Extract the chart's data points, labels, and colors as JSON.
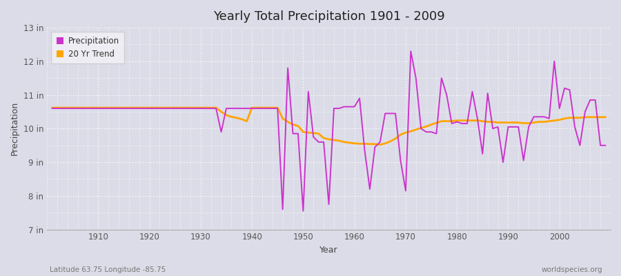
{
  "title": "Yearly Total Precipitation 1901 - 2009",
  "xlabel": "Year",
  "ylabel": "Precipitation",
  "subtitle_left": "Latitude 63.75 Longitude -85.75",
  "subtitle_right": "worldspecies.org",
  "bg_color": "#dcdce8",
  "plot_bg_color": "#dcdce8",
  "grid_color": "#ffffff",
  "line_color_precip": "#cc33cc",
  "line_color_trend": "#ffa500",
  "ylim": [
    7,
    13
  ],
  "ytick_labels": [
    "7 in",
    "8 in",
    "9 in",
    "10 in",
    "11 in",
    "12 in",
    "13 in"
  ],
  "ytick_values": [
    7,
    8,
    9,
    10,
    11,
    12,
    13
  ],
  "years": [
    1901,
    1902,
    1903,
    1904,
    1905,
    1906,
    1907,
    1908,
    1909,
    1910,
    1911,
    1912,
    1913,
    1914,
    1915,
    1916,
    1917,
    1918,
    1919,
    1920,
    1921,
    1922,
    1923,
    1924,
    1925,
    1926,
    1927,
    1928,
    1929,
    1930,
    1931,
    1932,
    1933,
    1934,
    1935,
    1936,
    1937,
    1938,
    1939,
    1940,
    1941,
    1942,
    1943,
    1944,
    1945,
    1946,
    1947,
    1948,
    1949,
    1950,
    1951,
    1952,
    1953,
    1954,
    1955,
    1956,
    1957,
    1958,
    1959,
    1960,
    1961,
    1962,
    1963,
    1964,
    1965,
    1966,
    1967,
    1968,
    1969,
    1970,
    1971,
    1972,
    1973,
    1974,
    1975,
    1976,
    1977,
    1978,
    1979,
    1980,
    1981,
    1982,
    1983,
    1984,
    1985,
    1986,
    1987,
    1988,
    1989,
    1990,
    1991,
    1992,
    1993,
    1994,
    1995,
    1996,
    1997,
    1998,
    1999,
    2000,
    2001,
    2002,
    2003,
    2004,
    2005,
    2006,
    2007,
    2008,
    2009
  ],
  "precip": [
    10.6,
    10.6,
    10.6,
    10.6,
    10.6,
    10.6,
    10.6,
    10.6,
    10.6,
    10.6,
    10.6,
    10.6,
    10.6,
    10.6,
    10.6,
    10.6,
    10.6,
    10.6,
    10.6,
    10.6,
    10.6,
    10.6,
    10.6,
    10.6,
    10.6,
    10.6,
    10.6,
    10.6,
    10.6,
    10.6,
    10.6,
    10.6,
    10.6,
    9.9,
    10.6,
    10.6,
    10.6,
    10.6,
    10.6,
    10.6,
    10.6,
    10.6,
    10.6,
    10.6,
    10.6,
    7.6,
    11.8,
    9.85,
    9.85,
    7.55,
    11.1,
    9.75,
    9.6,
    9.6,
    7.75,
    10.6,
    10.6,
    10.65,
    10.65,
    10.65,
    10.9,
    9.35,
    8.2,
    9.45,
    9.6,
    10.45,
    10.45,
    10.45,
    9.05,
    8.15,
    12.3,
    11.5,
    10.0,
    9.9,
    9.9,
    9.85,
    11.5,
    11.0,
    10.15,
    10.2,
    10.15,
    10.15,
    11.1,
    10.3,
    9.25,
    11.05,
    10.0,
    10.05,
    9.0,
    10.05,
    10.05,
    10.05,
    9.05,
    10.05,
    10.35,
    10.35,
    10.35,
    10.3,
    12.0,
    10.6,
    11.2,
    11.15,
    10.05,
    9.5,
    10.5,
    10.85,
    10.85,
    9.5,
    9.5
  ],
  "trend": [
    10.62,
    10.62,
    10.62,
    10.62,
    10.62,
    10.62,
    10.62,
    10.62,
    10.62,
    10.62,
    10.62,
    10.62,
    10.62,
    10.62,
    10.62,
    10.62,
    10.62,
    10.62,
    10.62,
    10.62,
    10.62,
    10.62,
    10.62,
    10.62,
    10.62,
    10.62,
    10.62,
    10.62,
    10.62,
    10.62,
    10.62,
    10.62,
    10.62,
    10.5,
    10.4,
    10.35,
    10.32,
    10.28,
    10.22,
    10.62,
    10.62,
    10.62,
    10.62,
    10.62,
    10.62,
    10.3,
    10.2,
    10.12,
    10.08,
    9.9,
    9.88,
    9.87,
    9.85,
    9.72,
    9.68,
    9.66,
    9.64,
    9.6,
    9.58,
    9.56,
    9.55,
    9.55,
    9.54,
    9.54,
    9.52,
    9.56,
    9.62,
    9.7,
    9.82,
    9.88,
    9.92,
    9.97,
    10.02,
    10.06,
    10.12,
    10.17,
    10.22,
    10.22,
    10.22,
    10.24,
    10.24,
    10.24,
    10.24,
    10.24,
    10.22,
    10.2,
    10.2,
    10.18,
    10.18,
    10.18,
    10.18,
    10.18,
    10.16,
    10.16,
    10.18,
    10.2,
    10.2,
    10.22,
    10.24,
    10.26,
    10.3,
    10.32,
    10.32,
    10.32,
    10.34,
    10.34,
    10.34,
    10.34,
    10.34
  ]
}
